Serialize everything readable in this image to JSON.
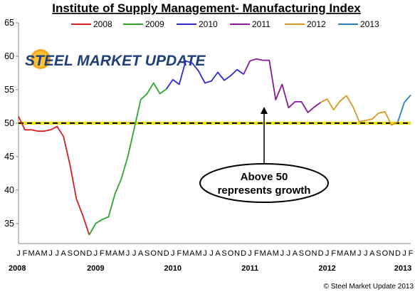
{
  "logo_text": "STEEL MARKET UPDATE",
  "copyright": "© Steel Market Update 2013",
  "annotation": {
    "line1": "Above 50",
    "line2": "represents growth"
  },
  "chart_data": {
    "type": "line",
    "title": "Institute of Supply Management- Manufacturing Index",
    "ylim": [
      32,
      65
    ],
    "yticks": [
      35,
      40,
      45,
      50,
      55,
      60,
      65
    ],
    "reference_line": 50,
    "month_labels": [
      "J",
      "F",
      "M",
      "A",
      "M",
      "J",
      "J",
      "A",
      "S",
      "O",
      "N",
      "D",
      "J",
      "F",
      "M",
      "A",
      "M",
      "J",
      "J",
      "A",
      "S",
      "O",
      "N",
      "D",
      "J",
      "F",
      "M",
      "A",
      "M",
      "J",
      "J",
      "A",
      "S",
      "O",
      "N",
      "D",
      "J",
      "F",
      "M",
      "A",
      "M",
      "J",
      "J",
      "A",
      "S",
      "O",
      "N",
      "D",
      "J",
      "F",
      "M",
      "A",
      "M",
      "J",
      "J",
      "A",
      "S",
      "O",
      "N",
      "D",
      "J",
      "F"
    ],
    "year_labels": [
      {
        "label": "2008",
        "index": 0
      },
      {
        "label": "2009",
        "index": 12
      },
      {
        "label": "2010",
        "index": 24
      },
      {
        "label": "2011",
        "index": 36
      },
      {
        "label": "2012",
        "index": 48
      },
      {
        "label": "2013",
        "index": 60
      }
    ],
    "legend_position": "top",
    "series": [
      {
        "name": "2008",
        "color": "#d42020",
        "start": 0,
        "values": [
          51.0,
          49.0,
          49.0,
          48.8,
          48.8,
          49.0,
          49.5,
          48.0,
          43.8,
          38.7,
          36.2,
          33.3
        ]
      },
      {
        "name": "2009",
        "color": "#2ea62e",
        "start": 11,
        "values": [
          33.3,
          35.0,
          35.6,
          36.0,
          39.4,
          41.7,
          45.0,
          49.2,
          53.5,
          54.4,
          56.0,
          54.4,
          55.1
        ]
      },
      {
        "name": "2010",
        "color": "#2a2ad0",
        "start": 23,
        "values": [
          55.1,
          56.5,
          55.8,
          59.3,
          59.0,
          57.8,
          56.0,
          56.3,
          57.6,
          56.4,
          57.1,
          58.0,
          57.3
        ]
      },
      {
        "name": "2011",
        "color": "#8a1a9a",
        "start": 35,
        "values": [
          57.3,
          59.3,
          59.6,
          59.4,
          59.4,
          53.5,
          55.8,
          52.3,
          53.2,
          53.2,
          51.6,
          52.4,
          53.1
        ]
      },
      {
        "name": "2012",
        "color": "#d99a20",
        "start": 47,
        "values": [
          53.1,
          53.6,
          52.0,
          53.3,
          54.1,
          52.5,
          50.2,
          50.4,
          50.6,
          51.5,
          51.7,
          49.7,
          50.2
        ]
      },
      {
        "name": "2013",
        "color": "#2b7fc8",
        "start": 59,
        "values": [
          50.2,
          53.1,
          54.2
        ]
      }
    ]
  }
}
